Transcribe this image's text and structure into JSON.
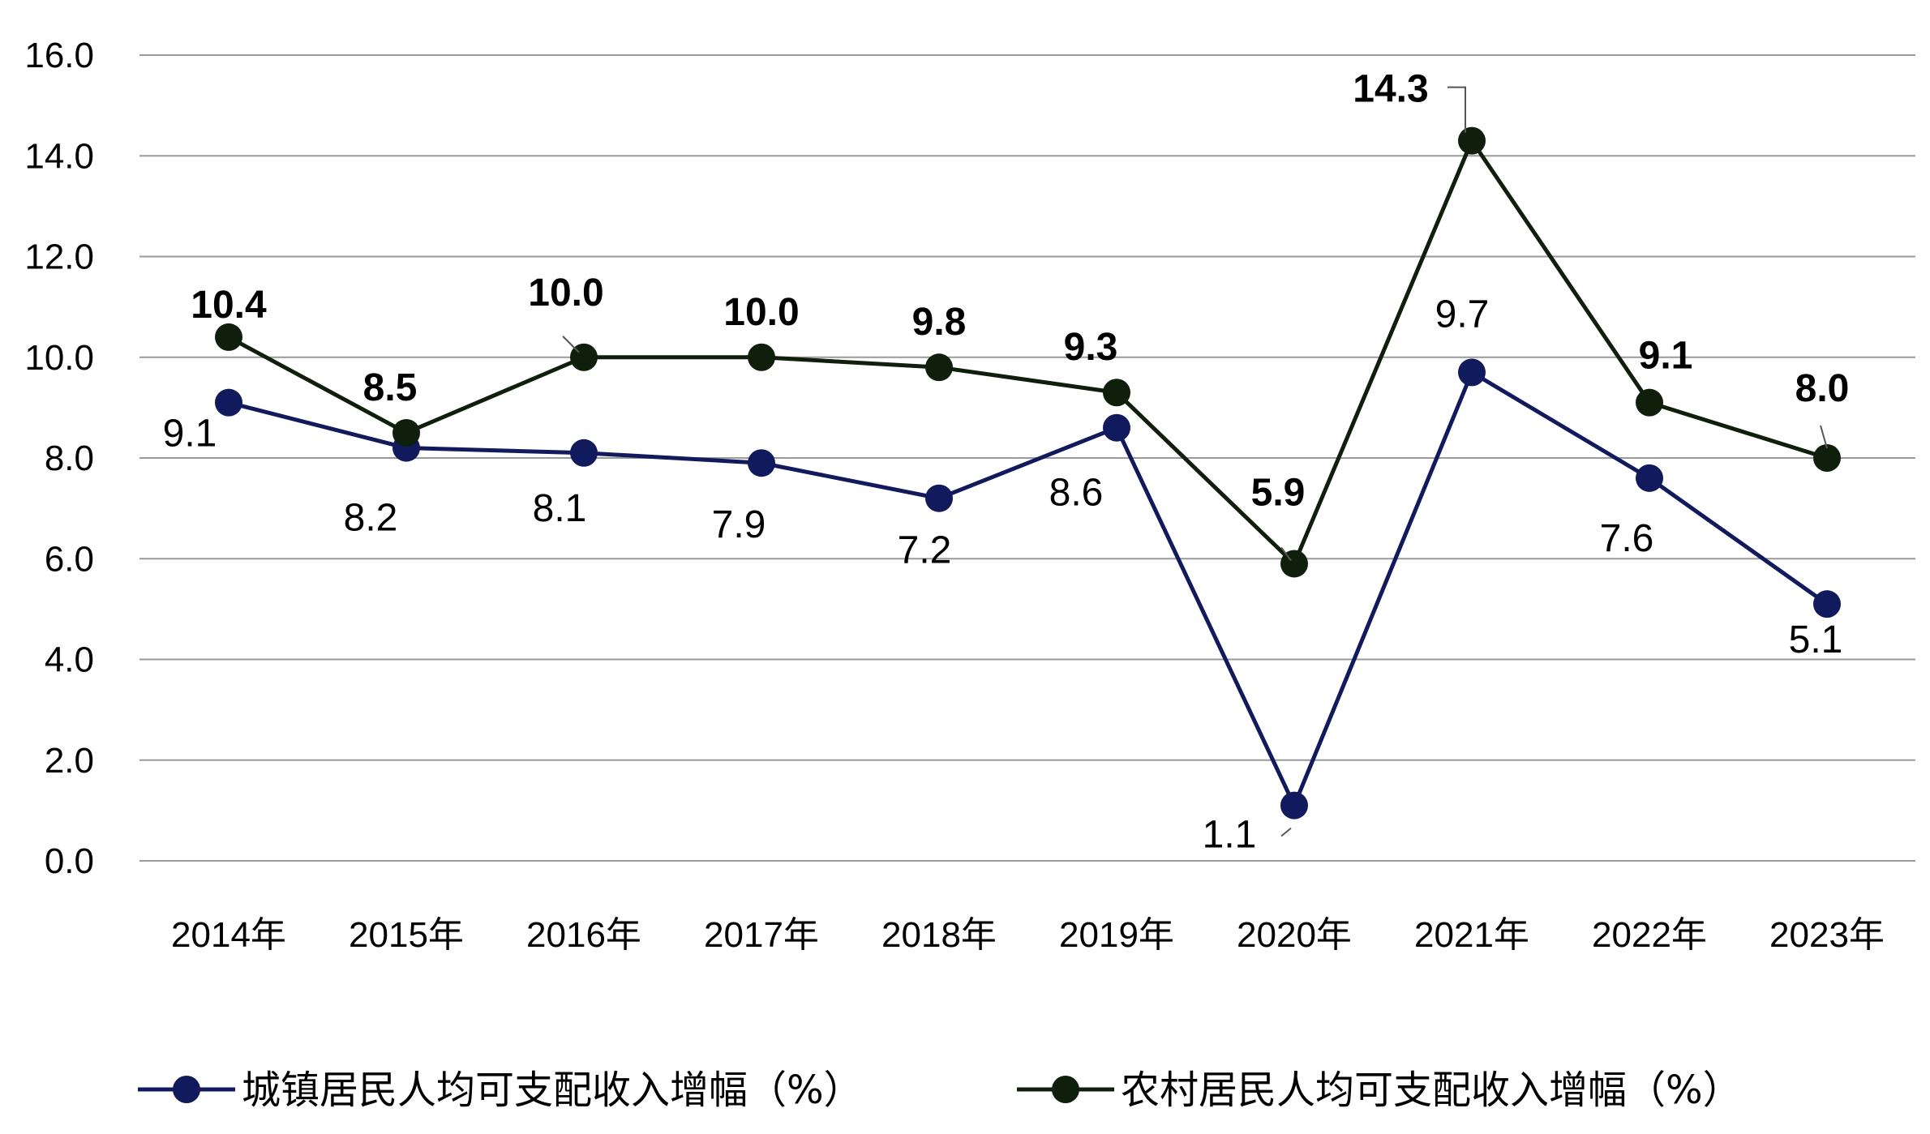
{
  "chart_data": {
    "type": "line",
    "categories": [
      "2014年",
      "2015年",
      "2016年",
      "2017年",
      "2018年",
      "2019年",
      "2020年",
      "2021年",
      "2022年",
      "2023年"
    ],
    "series": [
      {
        "name": "城镇居民人均可支配收入增幅（%）",
        "values": [
          9.1,
          8.2,
          8.1,
          7.9,
          7.2,
          8.6,
          1.1,
          9.7,
          7.6,
          5.1
        ],
        "labels": [
          "9.1",
          "8.2",
          "8.1",
          "7.9",
          "7.2",
          "8.6",
          "1.1",
          "9.7",
          "7.6",
          "5.1"
        ],
        "color": "#111a5c",
        "label_weight": "normal"
      },
      {
        "name": "农村居民人均可支配收入增幅（%）",
        "values": [
          10.4,
          8.5,
          10.0,
          10.0,
          9.8,
          9.3,
          5.9,
          14.3,
          9.1,
          8.0
        ],
        "labels": [
          "10.4",
          "8.5",
          "10.0",
          "10.0",
          "9.8",
          "9.3",
          "5.9",
          "14.3",
          "9.1",
          "8.0"
        ],
        "color": "#0f1f0c",
        "label_weight": "bold"
      }
    ],
    "ylim": [
      0,
      16
    ],
    "yticks": [
      "0.0",
      "2.0",
      "4.0",
      "6.0",
      "8.0",
      "10.0",
      "12.0",
      "14.0",
      "16.0"
    ],
    "grid": true,
    "legend_position": "bottom",
    "title": "",
    "xlabel": "",
    "ylabel": ""
  }
}
